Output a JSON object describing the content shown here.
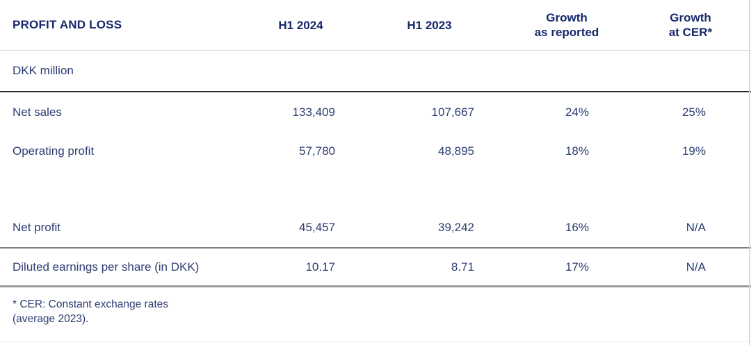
{
  "table": {
    "title": "PROFIT AND LOSS",
    "header": {
      "col2": "H1 2024",
      "col3": "H1 2023",
      "col4_line1": "Growth",
      "col4_line2": "as reported",
      "col5_line1": "Growth",
      "col5_line2": "at CER*"
    },
    "unit_label": "DKK million",
    "rows": [
      {
        "label": "Net sales",
        "h1_2024": "133,409",
        "h1_2023": "107,667",
        "growth_reported": "24%",
        "growth_cer": "25%"
      },
      {
        "label": "Operating profit",
        "h1_2024": "57,780",
        "h1_2023": "48,895",
        "growth_reported": "18%",
        "growth_cer": "19%"
      },
      {
        "label": "Net profit",
        "h1_2024": "45,457",
        "h1_2023": "39,242",
        "growth_reported": "16%",
        "growth_cer": "N/A"
      },
      {
        "label": "Diluted earnings per share (in DKK)",
        "h1_2024": "10.17",
        "h1_2023": "8.71",
        "growth_reported": "17%",
        "growth_cer": "N/A"
      }
    ],
    "footnote": {
      "line1": "* CER: Constant exchange rates",
      "line2": "(average 2023)."
    }
  },
  "chart_data": {
    "type": "table",
    "title": "PROFIT AND LOSS (DKK million)",
    "columns": [
      "",
      "H1 2024",
      "H1 2023",
      "Growth as reported",
      "Growth at CER*"
    ],
    "rows": [
      [
        "Net sales",
        133409,
        107667,
        "24%",
        "25%"
      ],
      [
        "Operating profit",
        57780,
        48895,
        "18%",
        "19%"
      ],
      [
        "Net profit",
        45457,
        39242,
        "16%",
        "N/A"
      ],
      [
        "Diluted earnings per share (in DKK)",
        10.17,
        8.71,
        "17%",
        "N/A"
      ]
    ],
    "footnote": "* CER: Constant exchange rates (average 2023)."
  },
  "colors": {
    "heading_navy": "#17286c",
    "body_navy": "#2e3d72",
    "rule_light": "#d9d9d9",
    "rule_dark": "#2d2d2d",
    "rule_mid": "#7f7f7f",
    "rule_thick": "#9a9a9a",
    "rule_faint": "#ececec"
  }
}
